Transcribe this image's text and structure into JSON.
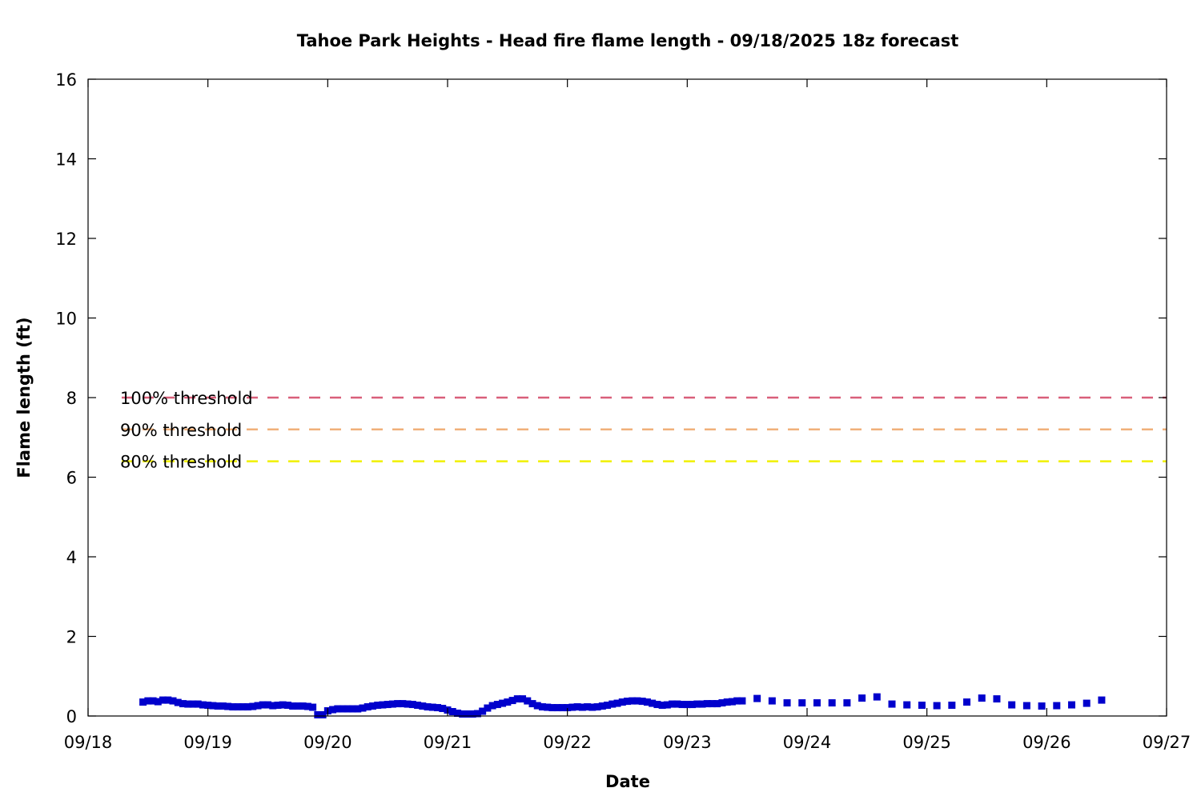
{
  "chart_data": {
    "type": "scatter",
    "title": "Tahoe Park Heights - Head fire flame length - 09/18/2025 18z forecast",
    "xlabel": "Date",
    "ylabel": "Flame length (ft)",
    "xlim": [
      "09/18",
      "09/27"
    ],
    "ylim": [
      0,
      16
    ],
    "x_tick_labels": [
      "09/18",
      "09/19",
      "09/20",
      "09/21",
      "09/22",
      "09/23",
      "09/24",
      "09/25",
      "09/26",
      "09/27"
    ],
    "y_tick_labels": [
      "0",
      "2",
      "4",
      "6",
      "8",
      "10",
      "12",
      "14",
      "16"
    ],
    "y_ticks": [
      0,
      2,
      4,
      6,
      8,
      10,
      12,
      14,
      16
    ],
    "grid": false,
    "thresholds": [
      {
        "label": "100% threshold",
        "value": 8.0,
        "color": "#d95f7a"
      },
      {
        "label": "90% threshold",
        "value": 7.2,
        "color": "#f0b07a"
      },
      {
        "label": "80% threshold",
        "value": 6.4,
        "color": "#f0f000"
      }
    ],
    "series": [
      {
        "color": "#0000cc",
        "points": [
          [
            "09/18 11:00",
            0.35
          ],
          [
            "09/18 12:00",
            0.38
          ],
          [
            "09/18 13:00",
            0.38
          ],
          [
            "09/18 14:00",
            0.36
          ],
          [
            "09/18 15:00",
            0.4
          ],
          [
            "09/18 16:00",
            0.4
          ],
          [
            "09/18 17:00",
            0.38
          ],
          [
            "09/18 18:00",
            0.34
          ],
          [
            "09/18 19:00",
            0.31
          ],
          [
            "09/18 20:00",
            0.3
          ],
          [
            "09/18 21:00",
            0.3
          ],
          [
            "09/18 22:00",
            0.3
          ],
          [
            "09/18 23:00",
            0.28
          ],
          [
            "09/19 00:00",
            0.27
          ],
          [
            "09/19 01:00",
            0.26
          ],
          [
            "09/19 02:00",
            0.25
          ],
          [
            "09/19 03:00",
            0.25
          ],
          [
            "09/19 04:00",
            0.24
          ],
          [
            "09/19 05:00",
            0.23
          ],
          [
            "09/19 06:00",
            0.23
          ],
          [
            "09/19 07:00",
            0.23
          ],
          [
            "09/19 08:00",
            0.23
          ],
          [
            "09/19 09:00",
            0.24
          ],
          [
            "09/19 10:00",
            0.26
          ],
          [
            "09/19 11:00",
            0.28
          ],
          [
            "09/19 12:00",
            0.28
          ],
          [
            "09/19 13:00",
            0.26
          ],
          [
            "09/19 14:00",
            0.27
          ],
          [
            "09/19 15:00",
            0.28
          ],
          [
            "09/19 16:00",
            0.27
          ],
          [
            "09/19 17:00",
            0.25
          ],
          [
            "09/19 18:00",
            0.25
          ],
          [
            "09/19 19:00",
            0.25
          ],
          [
            "09/19 20:00",
            0.24
          ],
          [
            "09/19 21:00",
            0.22
          ],
          [
            "09/19 22:00",
            0.03
          ],
          [
            "09/19 23:00",
            0.03
          ],
          [
            "09/20 00:00",
            0.13
          ],
          [
            "09/20 01:00",
            0.16
          ],
          [
            "09/20 02:00",
            0.18
          ],
          [
            "09/20 03:00",
            0.18
          ],
          [
            "09/20 04:00",
            0.18
          ],
          [
            "09/20 05:00",
            0.18
          ],
          [
            "09/20 06:00",
            0.18
          ],
          [
            "09/20 07:00",
            0.2
          ],
          [
            "09/20 08:00",
            0.23
          ],
          [
            "09/20 09:00",
            0.25
          ],
          [
            "09/20 10:00",
            0.27
          ],
          [
            "09/20 11:00",
            0.28
          ],
          [
            "09/20 12:00",
            0.29
          ],
          [
            "09/20 13:00",
            0.3
          ],
          [
            "09/20 14:00",
            0.31
          ],
          [
            "09/20 15:00",
            0.31
          ],
          [
            "09/20 16:00",
            0.3
          ],
          [
            "09/20 17:00",
            0.29
          ],
          [
            "09/20 18:00",
            0.27
          ],
          [
            "09/20 19:00",
            0.25
          ],
          [
            "09/20 20:00",
            0.23
          ],
          [
            "09/20 21:00",
            0.22
          ],
          [
            "09/20 22:00",
            0.21
          ],
          [
            "09/20 23:00",
            0.19
          ],
          [
            "09/21 00:00",
            0.15
          ],
          [
            "09/21 01:00",
            0.11
          ],
          [
            "09/21 02:00",
            0.07
          ],
          [
            "09/21 03:00",
            0.05
          ],
          [
            "09/21 04:00",
            0.05
          ],
          [
            "09/21 05:00",
            0.05
          ],
          [
            "09/21 06:00",
            0.06
          ],
          [
            "09/21 07:00",
            0.12
          ],
          [
            "09/21 08:00",
            0.2
          ],
          [
            "09/21 09:00",
            0.26
          ],
          [
            "09/21 10:00",
            0.29
          ],
          [
            "09/21 11:00",
            0.32
          ],
          [
            "09/21 12:00",
            0.35
          ],
          [
            "09/21 13:00",
            0.39
          ],
          [
            "09/21 14:00",
            0.43
          ],
          [
            "09/21 15:00",
            0.43
          ],
          [
            "09/21 16:00",
            0.38
          ],
          [
            "09/21 17:00",
            0.31
          ],
          [
            "09/21 18:00",
            0.26
          ],
          [
            "09/21 19:00",
            0.23
          ],
          [
            "09/21 20:00",
            0.22
          ],
          [
            "09/21 21:00",
            0.21
          ],
          [
            "09/21 22:00",
            0.21
          ],
          [
            "09/21 23:00",
            0.21
          ],
          [
            "09/22 00:00",
            0.21
          ],
          [
            "09/22 01:00",
            0.22
          ],
          [
            "09/22 02:00",
            0.23
          ],
          [
            "09/22 03:00",
            0.22
          ],
          [
            "09/22 04:00",
            0.23
          ],
          [
            "09/22 05:00",
            0.22
          ],
          [
            "09/22 06:00",
            0.23
          ],
          [
            "09/22 07:00",
            0.25
          ],
          [
            "09/22 08:00",
            0.27
          ],
          [
            "09/22 09:00",
            0.3
          ],
          [
            "09/22 10:00",
            0.32
          ],
          [
            "09/22 11:00",
            0.35
          ],
          [
            "09/22 12:00",
            0.37
          ],
          [
            "09/22 13:00",
            0.38
          ],
          [
            "09/22 14:00",
            0.38
          ],
          [
            "09/22 15:00",
            0.37
          ],
          [
            "09/22 16:00",
            0.35
          ],
          [
            "09/22 17:00",
            0.32
          ],
          [
            "09/22 18:00",
            0.29
          ],
          [
            "09/22 19:00",
            0.27
          ],
          [
            "09/22 20:00",
            0.28
          ],
          [
            "09/22 21:00",
            0.3
          ],
          [
            "09/22 22:00",
            0.3
          ],
          [
            "09/22 23:00",
            0.29
          ],
          [
            "09/23 00:00",
            0.29
          ],
          [
            "09/23 01:00",
            0.29
          ],
          [
            "09/23 02:00",
            0.3
          ],
          [
            "09/23 03:00",
            0.3
          ],
          [
            "09/23 04:00",
            0.31
          ],
          [
            "09/23 05:00",
            0.31
          ],
          [
            "09/23 06:00",
            0.31
          ],
          [
            "09/23 07:00",
            0.33
          ],
          [
            "09/23 08:00",
            0.35
          ],
          [
            "09/23 09:00",
            0.36
          ],
          [
            "09/23 10:00",
            0.38
          ],
          [
            "09/23 11:00",
            0.38
          ],
          [
            "09/23 14:00",
            0.44
          ],
          [
            "09/23 17:00",
            0.38
          ],
          [
            "09/23 20:00",
            0.33
          ],
          [
            "09/23 23:00",
            0.33
          ],
          [
            "09/24 02:00",
            0.33
          ],
          [
            "09/24 05:00",
            0.33
          ],
          [
            "09/24 08:00",
            0.33
          ],
          [
            "09/24 11:00",
            0.45
          ],
          [
            "09/24 14:00",
            0.48
          ],
          [
            "09/24 17:00",
            0.3
          ],
          [
            "09/24 20:00",
            0.28
          ],
          [
            "09/24 23:00",
            0.27
          ],
          [
            "09/25 02:00",
            0.26
          ],
          [
            "09/25 05:00",
            0.27
          ],
          [
            "09/25 08:00",
            0.35
          ],
          [
            "09/25 11:00",
            0.45
          ],
          [
            "09/25 14:00",
            0.43
          ],
          [
            "09/25 17:00",
            0.28
          ],
          [
            "09/25 20:00",
            0.26
          ],
          [
            "09/25 23:00",
            0.25
          ],
          [
            "09/26 02:00",
            0.26
          ],
          [
            "09/26 05:00",
            0.28
          ],
          [
            "09/26 08:00",
            0.32
          ],
          [
            "09/26 11:00",
            0.4
          ]
        ]
      }
    ]
  }
}
